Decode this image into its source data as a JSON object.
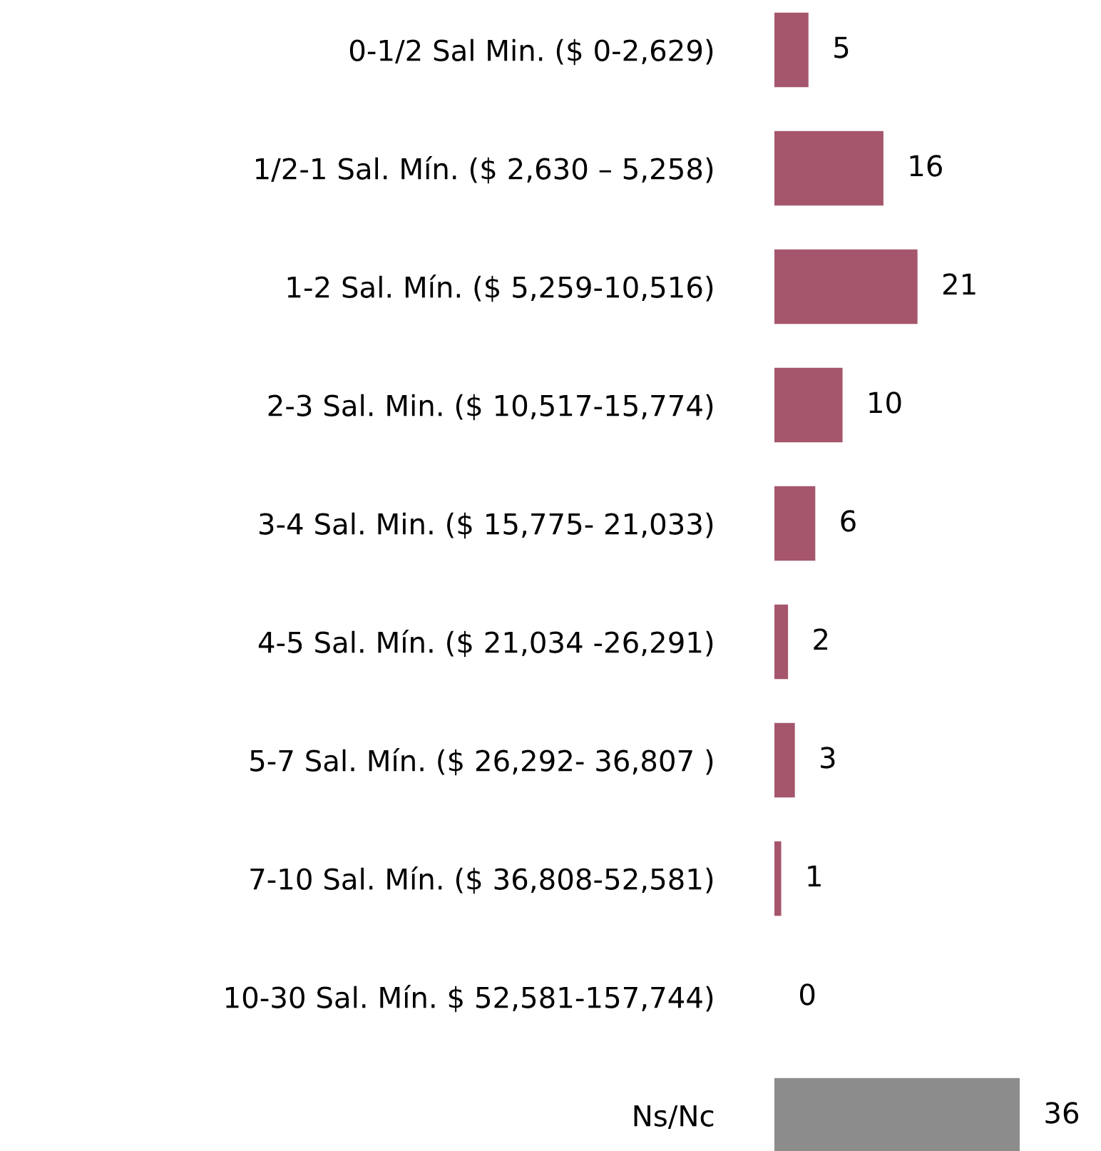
{
  "chart_data": {
    "type": "bar",
    "orientation": "horizontal",
    "categories": [
      "0-1/2 Sal Min. ($ 0-2,629)",
      "1/2-1 Sal. Mín. ($ 2,630 – 5,258)",
      "1-2 Sal. Mín. ($ 5,259-10,516)",
      "2-3 Sal. Min. ($ 10,517-15,774)",
      "3-4 Sal. Min. ($ 15,775- 21,033)",
      "4-5 Sal. Mín. ($ 21,034 -26,291)",
      "5-7 Sal. Mín. ($ 26,292- 36,807 )",
      "7-10 Sal. Mín. ($ 36,808-52,581)",
      "10-30 Sal. Mín. $ 52,581-157,744)",
      "Ns/Nc"
    ],
    "values": [
      5,
      16,
      21,
      10,
      6,
      2,
      3,
      1,
      0,
      36
    ],
    "colors": [
      "#a5566c",
      "#a5566c",
      "#a5566c",
      "#a5566c",
      "#a5566c",
      "#a5566c",
      "#a5566c",
      "#a5566c",
      "#a5566c",
      "#8c8c8c"
    ],
    "data_labels": true,
    "grid": false,
    "legend": false
  }
}
